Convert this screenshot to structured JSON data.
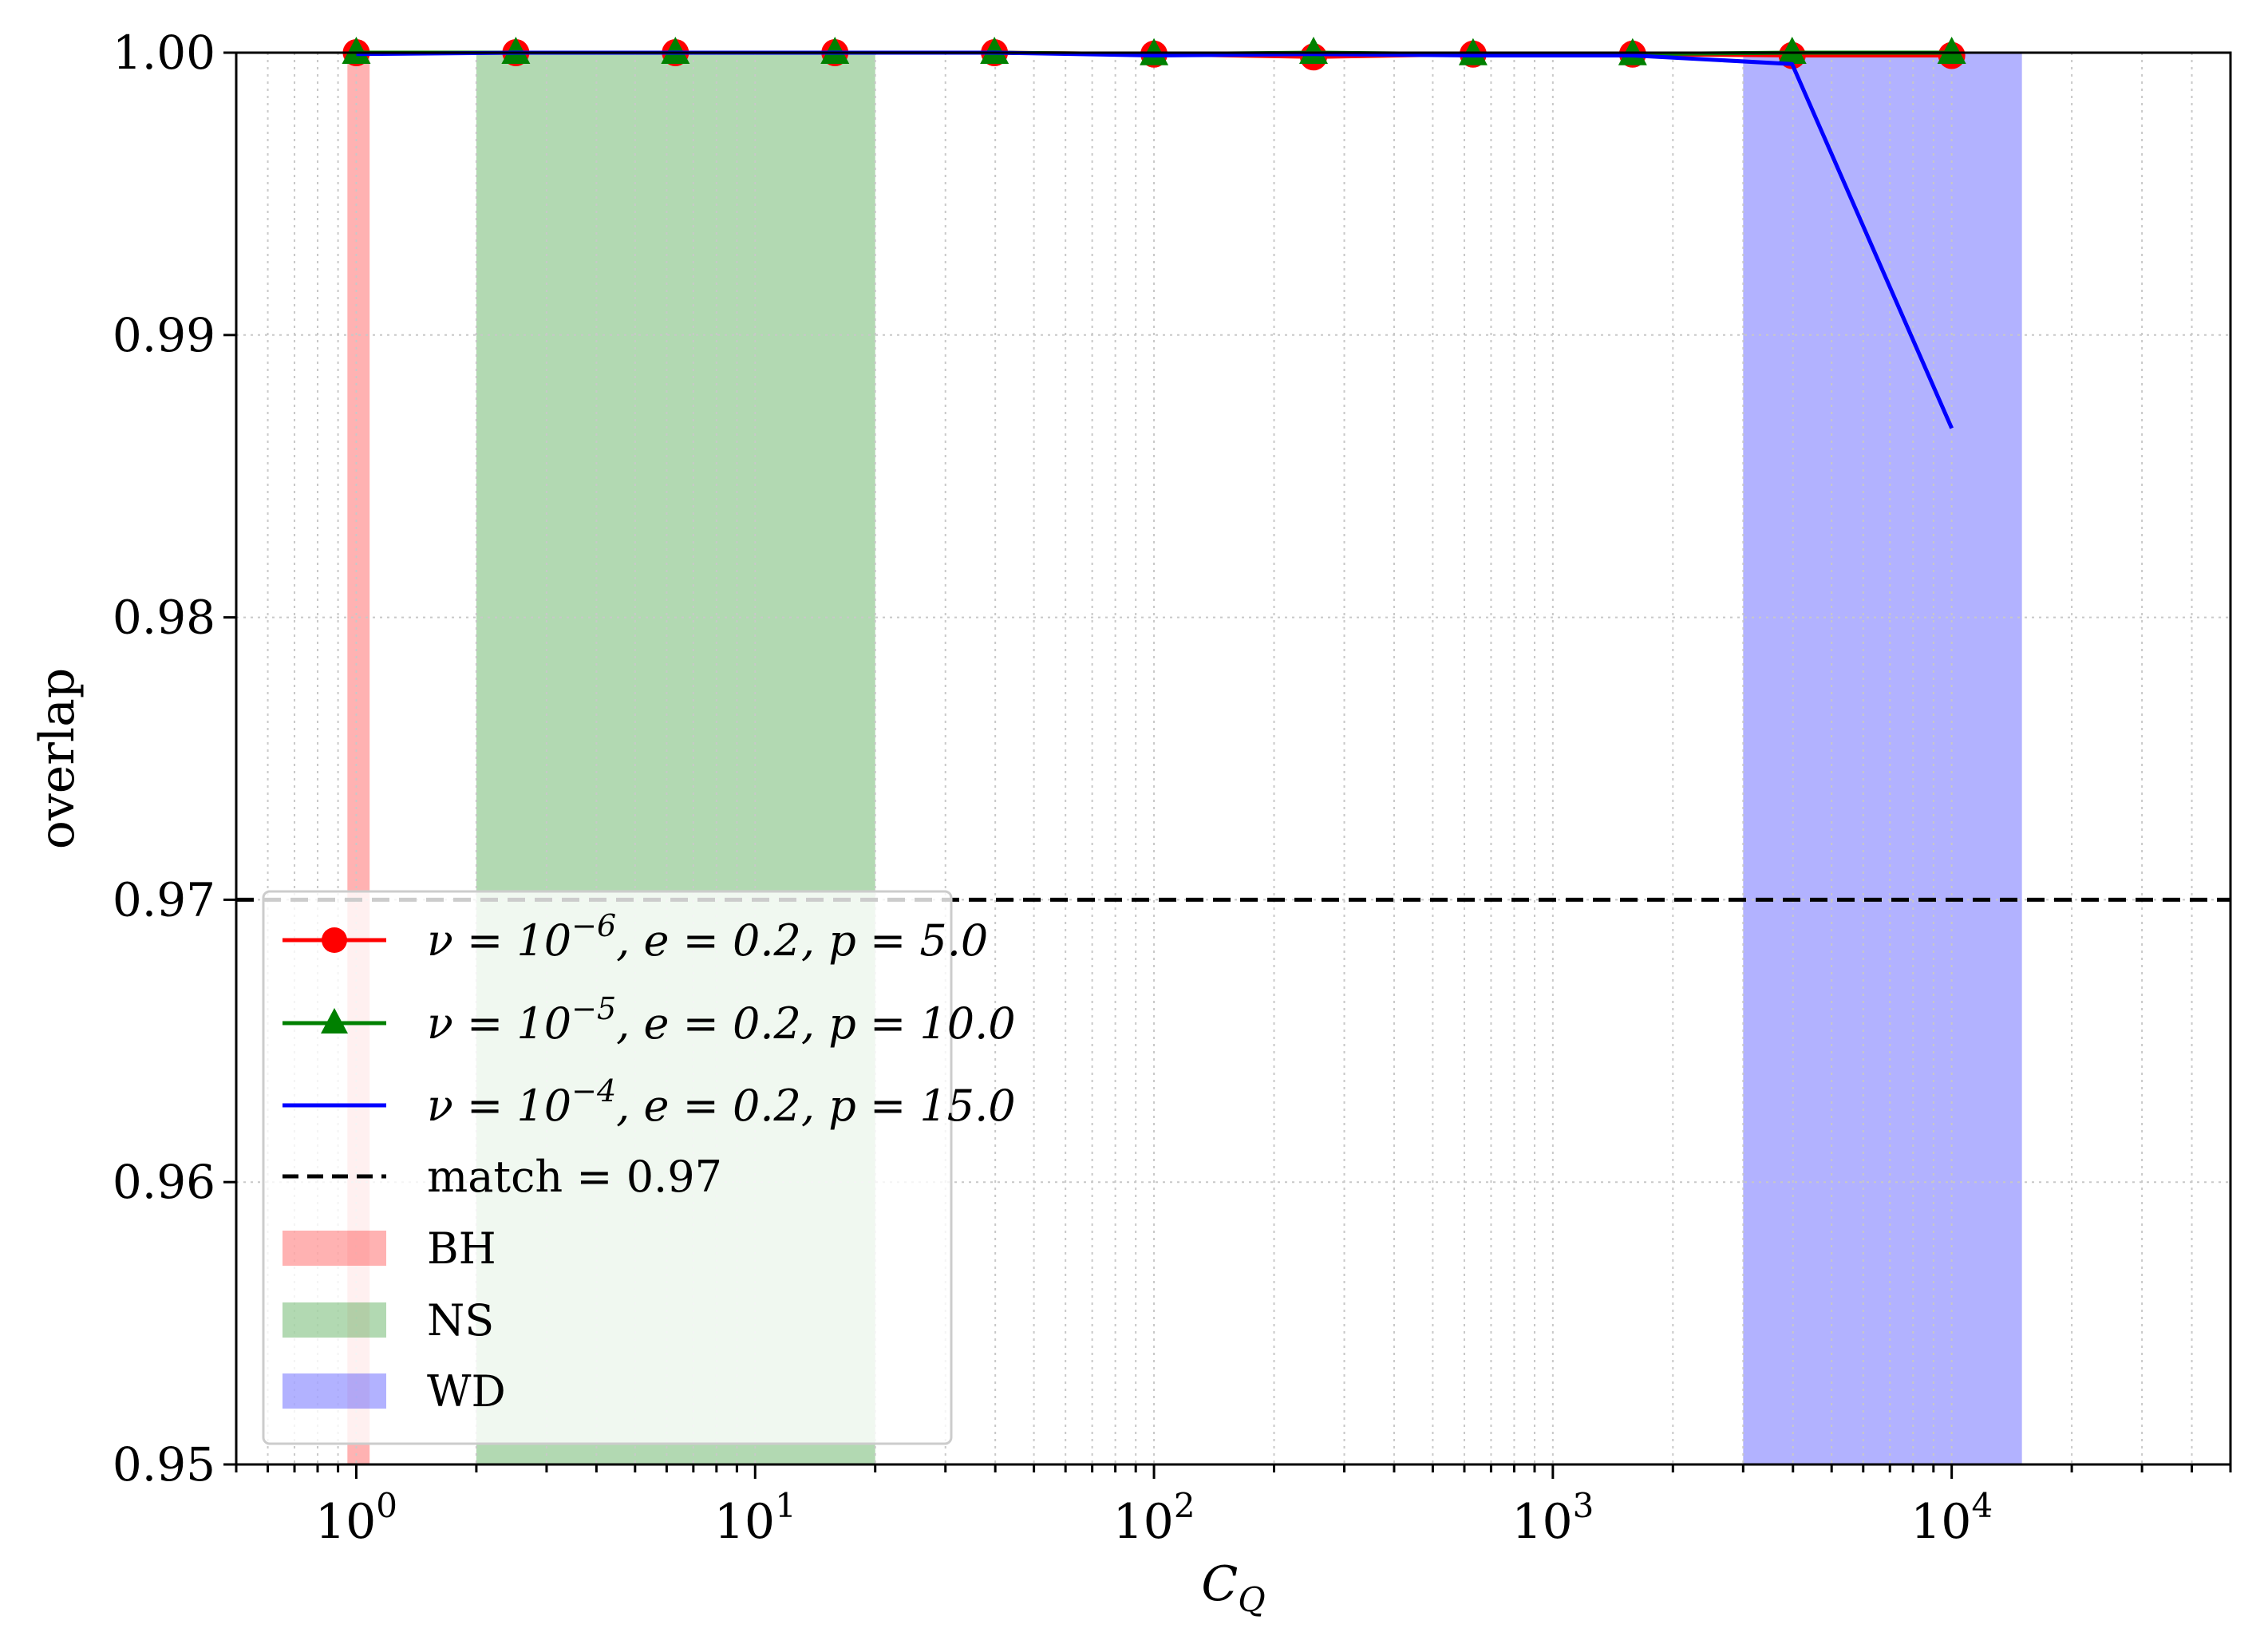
{
  "chart_data": {
    "type": "line",
    "xlabel": "C_Q",
    "ylabel": "overlap",
    "xscale": "log",
    "xlim": [
      0.5,
      50000
    ],
    "ylim": [
      0.95,
      1.0
    ],
    "grid": true,
    "legend_position": "lower-left",
    "x_tick_labels": [
      "10^0",
      "10^1",
      "10^2",
      "10^3",
      "10^4"
    ],
    "y_tick_labels": [
      "0.95",
      "0.96",
      "0.97",
      "0.98",
      "0.99",
      "1.00"
    ],
    "y_ticks": [
      0.95,
      0.96,
      0.97,
      0.98,
      0.99,
      1.0
    ],
    "x_ticks": [
      1,
      10,
      100,
      1000,
      10000
    ],
    "series": [
      {
        "legend_parts": [
          "ν = 10",
          "−6",
          ", e = 0.2, p = 5.0"
        ],
        "color": "#ff0000",
        "marker": "circle",
        "x": [
          1,
          2.512,
          6.31,
          15.85,
          39.81,
          100,
          251.2,
          631,
          1585,
          3981,
          10000
        ],
        "y": [
          1.0,
          1.0,
          1.0,
          1.0,
          1.0,
          0.99995,
          0.99985,
          0.99995,
          0.99995,
          0.9999,
          0.9999
        ]
      },
      {
        "legend_parts": [
          "ν = 10",
          "−5",
          ", e = 0.2, p = 10.0"
        ],
        "color": "#008000",
        "marker": "triangle",
        "x": [
          1,
          2.512,
          6.31,
          15.85,
          39.81,
          100,
          251.2,
          631,
          1585,
          3981,
          10000
        ],
        "y": [
          1.0,
          1.0,
          1.0,
          1.0,
          1.0,
          0.99995,
          1.0,
          0.99995,
          0.99995,
          1.0,
          1.0
        ]
      },
      {
        "legend_parts": [
          "ν = 10",
          "−4",
          ", e = 0.2, p = 15.0"
        ],
        "color": "#0000ff",
        "marker": "none",
        "x": [
          1,
          2.512,
          6.31,
          15.85,
          39.81,
          100,
          251.2,
          631,
          1585,
          3981,
          10000
        ],
        "y": [
          0.99995,
          1.0,
          1.0,
          1.0,
          1.0,
          0.9999,
          0.99995,
          0.9999,
          0.9999,
          0.9996,
          0.9867
        ]
      }
    ],
    "reference_line": {
      "label": "match = 0.97",
      "y": 0.97,
      "color": "#000000",
      "style": "dashed"
    },
    "bands": [
      {
        "label": "BH",
        "x_range": [
          0.95,
          1.08
        ],
        "color": "#ff0000",
        "opacity": 0.3
      },
      {
        "label": "NS",
        "x_range": [
          2,
          20
        ],
        "color": "#008000",
        "opacity": 0.3
      },
      {
        "label": "WD",
        "x_range": [
          3000,
          15000
        ],
        "color": "#0000ff",
        "opacity": 0.3
      }
    ]
  }
}
